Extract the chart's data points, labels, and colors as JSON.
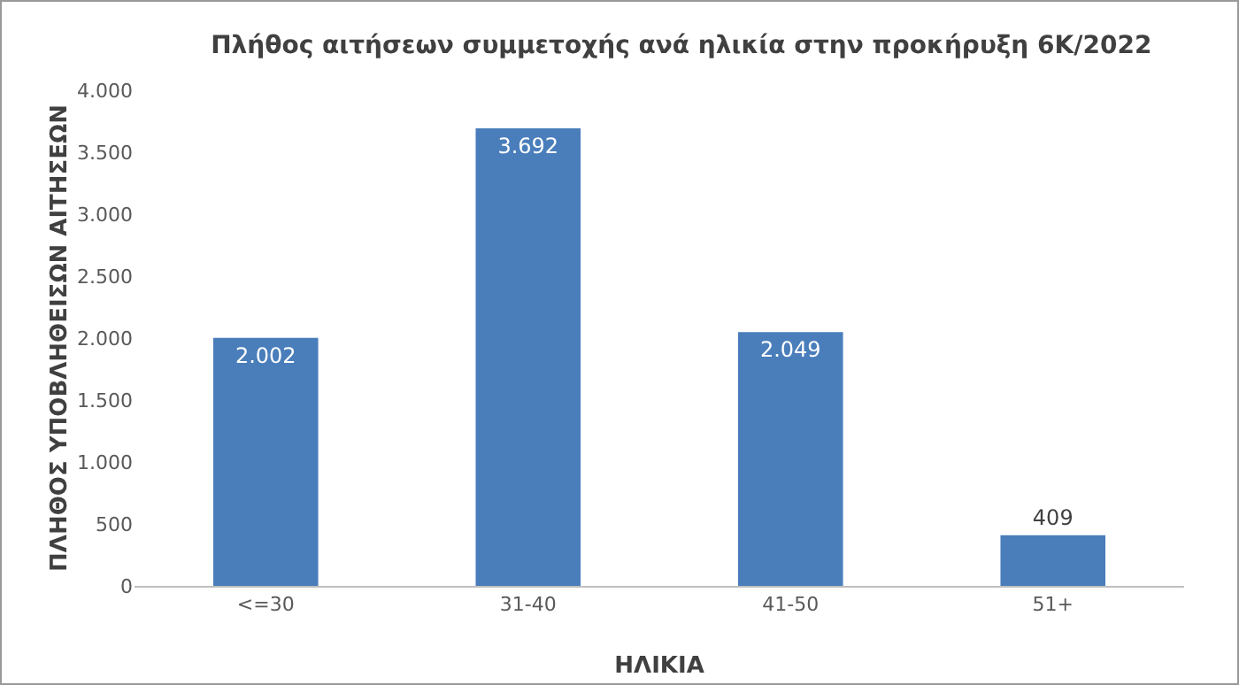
{
  "chart_data": {
    "type": "bar",
    "title": "Πλήθος αιτήσεων συμμετοχής ανά ηλικία στην προκήρυξη 6Κ/2022",
    "xlabel": "ΗΛΙΚΙΑ",
    "ylabel": "ΠΛΗΘΟΣ ΥΠΟΒΛΗΘΕΙΣΩΝ ΑΙΤΗΣΕΩΝ",
    "categories": [
      "<=30",
      "31-40",
      "41-50",
      "51+"
    ],
    "values": [
      2002,
      3692,
      2049,
      409
    ],
    "value_labels": [
      "2.002",
      "3.692",
      "2.049",
      "409"
    ],
    "color": "#4a7ebb",
    "ylim": [
      0,
      4000
    ],
    "yticks": [
      0,
      500,
      {
        "value": 1000,
        "label": "1.000"
      },
      {
        "value": 1500,
        "label": "1.500"
      },
      {
        "value": 2000,
        "label": "2.000"
      },
      {
        "value": 2500,
        "label": "2.500"
      },
      {
        "value": 3000,
        "label": "3.000"
      },
      {
        "value": 3500,
        "label": "3.500"
      },
      {
        "value": 4000,
        "label": "4.000"
      }
    ],
    "grid": false
  }
}
